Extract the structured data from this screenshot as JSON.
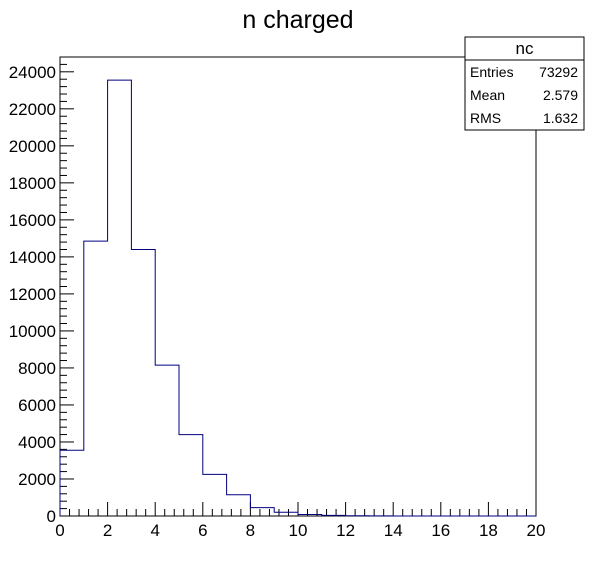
{
  "chart_data": {
    "type": "histogram",
    "title": "n charged",
    "xlabel": "",
    "ylabel": "",
    "xlim": [
      0,
      20
    ],
    "ylim": [
      0,
      24800
    ],
    "xticks": [
      "0",
      "2",
      "4",
      "6",
      "8",
      "10",
      "12",
      "14",
      "16",
      "18",
      "20"
    ],
    "yticks": [
      "0",
      "2000",
      "4000",
      "6000",
      "8000",
      "10000",
      "12000",
      "14000",
      "16000",
      "18000",
      "20000",
      "22000",
      "24000"
    ],
    "bin_edges": [
      0,
      1,
      2,
      3,
      4,
      5,
      6,
      7,
      8,
      9,
      10,
      11,
      12,
      13,
      14,
      15,
      16,
      17,
      18,
      19,
      20
    ],
    "counts": [
      3550,
      14850,
      23550,
      14400,
      8150,
      4400,
      2250,
      1150,
      450,
      200,
      80,
      35,
      15,
      5,
      0,
      0,
      0,
      0,
      0,
      0
    ],
    "line_color": "#000080",
    "grid": false,
    "legend_position": "top-right",
    "stats_box": {
      "name": "nc",
      "rows": [
        {
          "label": "Entries",
          "value": "73292"
        },
        {
          "label": "Mean",
          "value": "2.579"
        },
        {
          "label": "RMS",
          "value": "1.632"
        }
      ]
    }
  }
}
